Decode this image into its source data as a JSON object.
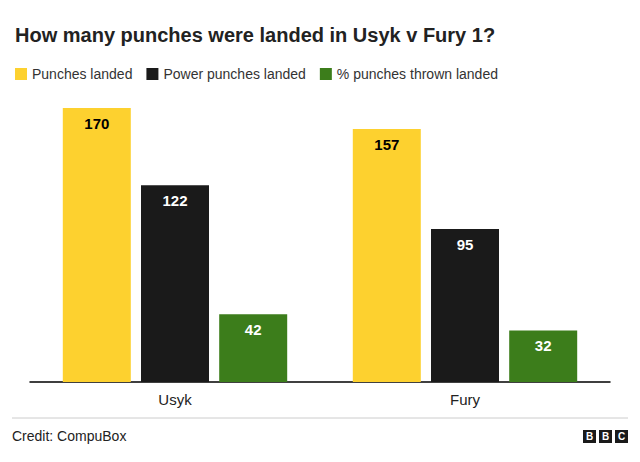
{
  "chart_data": {
    "type": "bar",
    "title": "How many punches were landed in Usyk v Fury 1?",
    "categories": [
      "Usyk",
      "Fury"
    ],
    "series": [
      {
        "name": "Punches landed",
        "color": "#fdd12f",
        "values": [
          170,
          157
        ]
      },
      {
        "name": "Power punches landed",
        "color": "#1a1a1a",
        "values": [
          122,
          95
        ]
      },
      {
        "name": "% punches thrown landed",
        "color": "#3c7d1b",
        "values": [
          42,
          32
        ]
      }
    ],
    "ylim": [
      0,
      170
    ],
    "grid": false,
    "data_labels": true,
    "tick_labels": "x",
    "legend": "top-left",
    "credit": "Credit: CompuBox",
    "logo": "BBC"
  }
}
